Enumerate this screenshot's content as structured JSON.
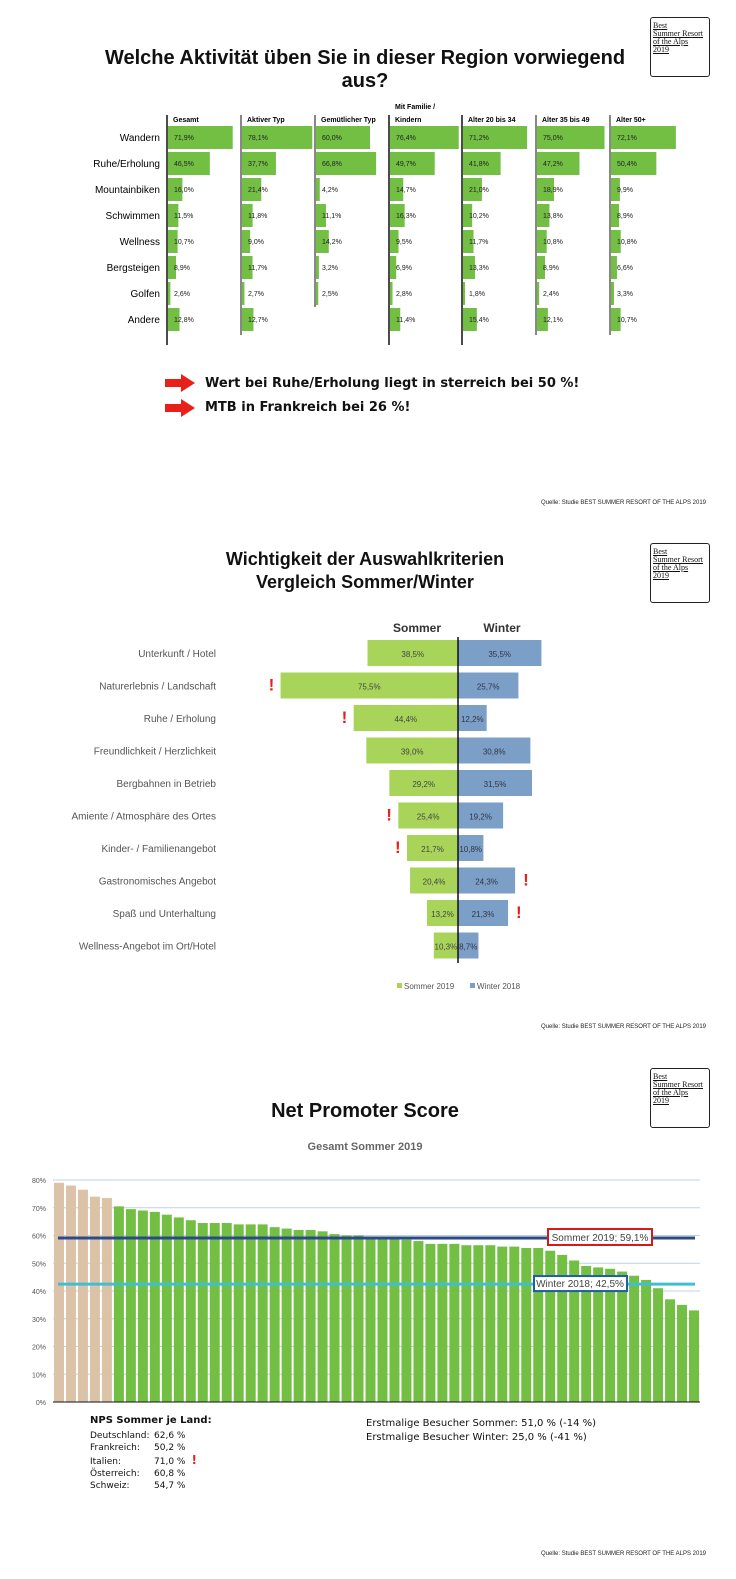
{
  "logo": {
    "lines": [
      "Best",
      "Summer Resort",
      "of the Alps",
      "2019"
    ]
  },
  "source": "Quelle: Studie BEST SUMMER RESORT OF THE ALPS 2019",
  "colors": {
    "green": "#72bf44",
    "green2": "#a8d45a",
    "blue": "#7b9fc6",
    "beige": "#dcc3a8",
    "red": "#e8201a",
    "navy": "#2c4a8a",
    "cyan": "#3fbfcf"
  },
  "section1": {
    "title": "Welche Aktivität üben Sie in dieser Region vorwiegend aus?",
    "notes": [
      "Wert bei Ruhe/Erholung liegt in    sterreich bei 50 %!",
      "MTB in Frankreich bei 26 %!"
    ]
  },
  "section2": {
    "title_line1": "Wichtigkeit der Auswahlkriterien",
    "title_line2": "Vergleich Sommer/Winter",
    "col_sommer": "Sommer",
    "col_winter": "Winter",
    "legend_sommer": "Sommer 2019",
    "legend_winter": "Winter 2018"
  },
  "section3": {
    "title": "Net Promoter Score",
    "subtitle": "Gesamt Sommer 2019",
    "line_sommer_label": "Sommer 2019; 59,1%",
    "line_winter_label": "Winter 2018; 42,5%",
    "nps_title": "NPS Sommer je Land:",
    "nps_rows": [
      {
        "land": "Deutschland:",
        "value": "62,6 %"
      },
      {
        "land": "Frankreich:",
        "value": "50,2 %"
      },
      {
        "land": "Italien:",
        "value": "71,0 %",
        "flag": "!"
      },
      {
        "land": "Österreich:",
        "value": "60,8 %"
      },
      {
        "land": "Schweiz:",
        "value": "54,7 %"
      }
    ],
    "first_visit_summer": "Erstmalige Besucher Sommer: 51,0 % (-14 %)",
    "first_visit_winter": "Erstmalige Besucher Winter: 25,0 % (-41 %)"
  },
  "chart_data": [
    {
      "type": "bar",
      "title": "Welche Aktivität üben Sie in dieser Region vorwiegend aus?",
      "categories": [
        "Wandern",
        "Ruhe/Erholung",
        "Mountainbiken",
        "Schwimmen",
        "Wellness",
        "Bergsteigen",
        "Golfen",
        "Andere"
      ],
      "series": [
        {
          "name": "Gesamt",
          "values": [
            71.9,
            46.5,
            16.0,
            11.5,
            10.7,
            8.9,
            2.6,
            12.8
          ],
          "labels": [
            "71,9%",
            "46,5%",
            "16,0%",
            "11,5%",
            "10,7%",
            "8,9%",
            "2,6%",
            "12,8%"
          ]
        },
        {
          "name": "Aktiver Typ",
          "values": [
            78.1,
            37.7,
            21.4,
            11.8,
            9.0,
            11.7,
            2.7,
            12.7
          ],
          "labels": [
            "78,1%",
            "37,7%",
            "21,4%",
            "11,8%",
            "9,0%",
            "11,7%",
            "2,7%",
            "12,7%"
          ]
        },
        {
          "name": "Gemütlicher Typ",
          "values": [
            60.0,
            66.8,
            4.2,
            11.1,
            14.2,
            3.2,
            2.5,
            null
          ],
          "labels": [
            "60,0%",
            "66,8%",
            "4,2%",
            "11,1%",
            "14,2%",
            "3,2%",
            "2,5%",
            ""
          ]
        },
        {
          "name": "Mit Familie / Kindern",
          "values": [
            76.4,
            49.7,
            14.7,
            16.3,
            9.5,
            6.9,
            2.8,
            11.4
          ],
          "labels": [
            "76,4%",
            "49,7%",
            "14,7%",
            "16,3%",
            "9,5%",
            "6,9%",
            "2,8%",
            "11,4%"
          ]
        },
        {
          "name": "Alter 20 bis 34",
          "values": [
            71.2,
            41.8,
            21.0,
            10.2,
            11.7,
            13.3,
            1.8,
            15.4
          ],
          "labels": [
            "71,2%",
            "41,8%",
            "21,0%",
            "10,2%",
            "11,7%",
            "13,3%",
            "1,8%",
            "15,4%"
          ]
        },
        {
          "name": "Alter 35 bis 49",
          "values": [
            75.0,
            47.2,
            18.9,
            13.8,
            10.8,
            8.9,
            2.4,
            12.1
          ],
          "labels": [
            "75,0%",
            "47,2%",
            "18,9%",
            "13,8%",
            "10,8%",
            "8,9%",
            "2,4%",
            "12,1%"
          ]
        },
        {
          "name": "Alter 50+",
          "values": [
            72.1,
            50.4,
            9.9,
            8.9,
            10.8,
            6.6,
            3.3,
            10.7
          ],
          "labels": [
            "72,1%",
            "50,4%",
            "9,9%",
            "8,9%",
            "10,8%",
            "6,6%",
            "3,3%",
            "10,7%"
          ]
        }
      ]
    },
    {
      "type": "bar",
      "title": "Wichtigkeit der Auswahlkriterien Vergleich Sommer/Winter",
      "categories": [
        "Unterkunft / Hotel",
        "Naturerlebnis / Landschaft",
        "Ruhe / Erholung",
        "Freundlichkeit / Herzlichkeit",
        "Bergbahnen in Betrieb",
        "Amiente / Atmosphäre des Ortes",
        "Kinder- / Familienangebot",
        "Gastronomisches Angebot",
        "Spaß und Unterhaltung",
        "Wellness-Angebot im Ort/Hotel"
      ],
      "series": [
        {
          "name": "Sommer 2019",
          "values": [
            38.5,
            75.5,
            44.4,
            39.0,
            29.2,
            25.4,
            21.7,
            20.4,
            13.2,
            10.3
          ],
          "labels": [
            "38,5%",
            "75,5%",
            "44,4%",
            "39,0%",
            "29,2%",
            "25,4%",
            "21,7%",
            "20,4%",
            "13,2%",
            "10,3%"
          ]
        },
        {
          "name": "Winter 2018",
          "values": [
            35.5,
            25.7,
            12.2,
            30.8,
            31.5,
            19.2,
            10.8,
            24.3,
            21.3,
            8.7
          ],
          "labels": [
            "35,5%",
            "25,7%",
            "12,2%",
            "30,8%",
            "31,5%",
            "19,2%",
            "10,8%",
            "24,3%",
            "21,3%",
            "8,7%"
          ]
        }
      ],
      "flags_sommer": [
        false,
        true,
        true,
        false,
        false,
        true,
        true,
        false,
        false,
        false
      ],
      "flags_winter": [
        false,
        false,
        false,
        false,
        false,
        false,
        false,
        true,
        true,
        false
      ],
      "legend": "bottom"
    },
    {
      "type": "bar",
      "title": "Net Promoter Score",
      "subtitle": "Gesamt Sommer 2019",
      "yticks": [
        "0%",
        "10%",
        "20%",
        "30%",
        "40%",
        "50%",
        "60%",
        "70%",
        "80%"
      ],
      "ylim": [
        0,
        80
      ],
      "values": [
        79,
        78,
        76.5,
        74,
        73.5,
        70.5,
        69.5,
        69,
        68.5,
        67.5,
        66.5,
        65.5,
        64.5,
        64.5,
        64.5,
        64,
        64,
        64,
        63,
        62.5,
        62,
        62,
        61.5,
        60.5,
        60,
        60,
        59.5,
        59.5,
        59,
        58.5,
        58,
        57,
        57,
        57,
        56.5,
        56.5,
        56.5,
        56,
        56,
        55.5,
        55.5,
        54.5,
        53,
        51,
        49,
        48.5,
        48,
        47,
        45.5,
        44,
        41,
        37,
        35,
        33
      ],
      "highlight_count": 5,
      "reference_lines": [
        {
          "name": "Sommer 2019",
          "value": 59.1
        },
        {
          "name": "Winter 2018",
          "value": 42.5
        }
      ]
    }
  ]
}
